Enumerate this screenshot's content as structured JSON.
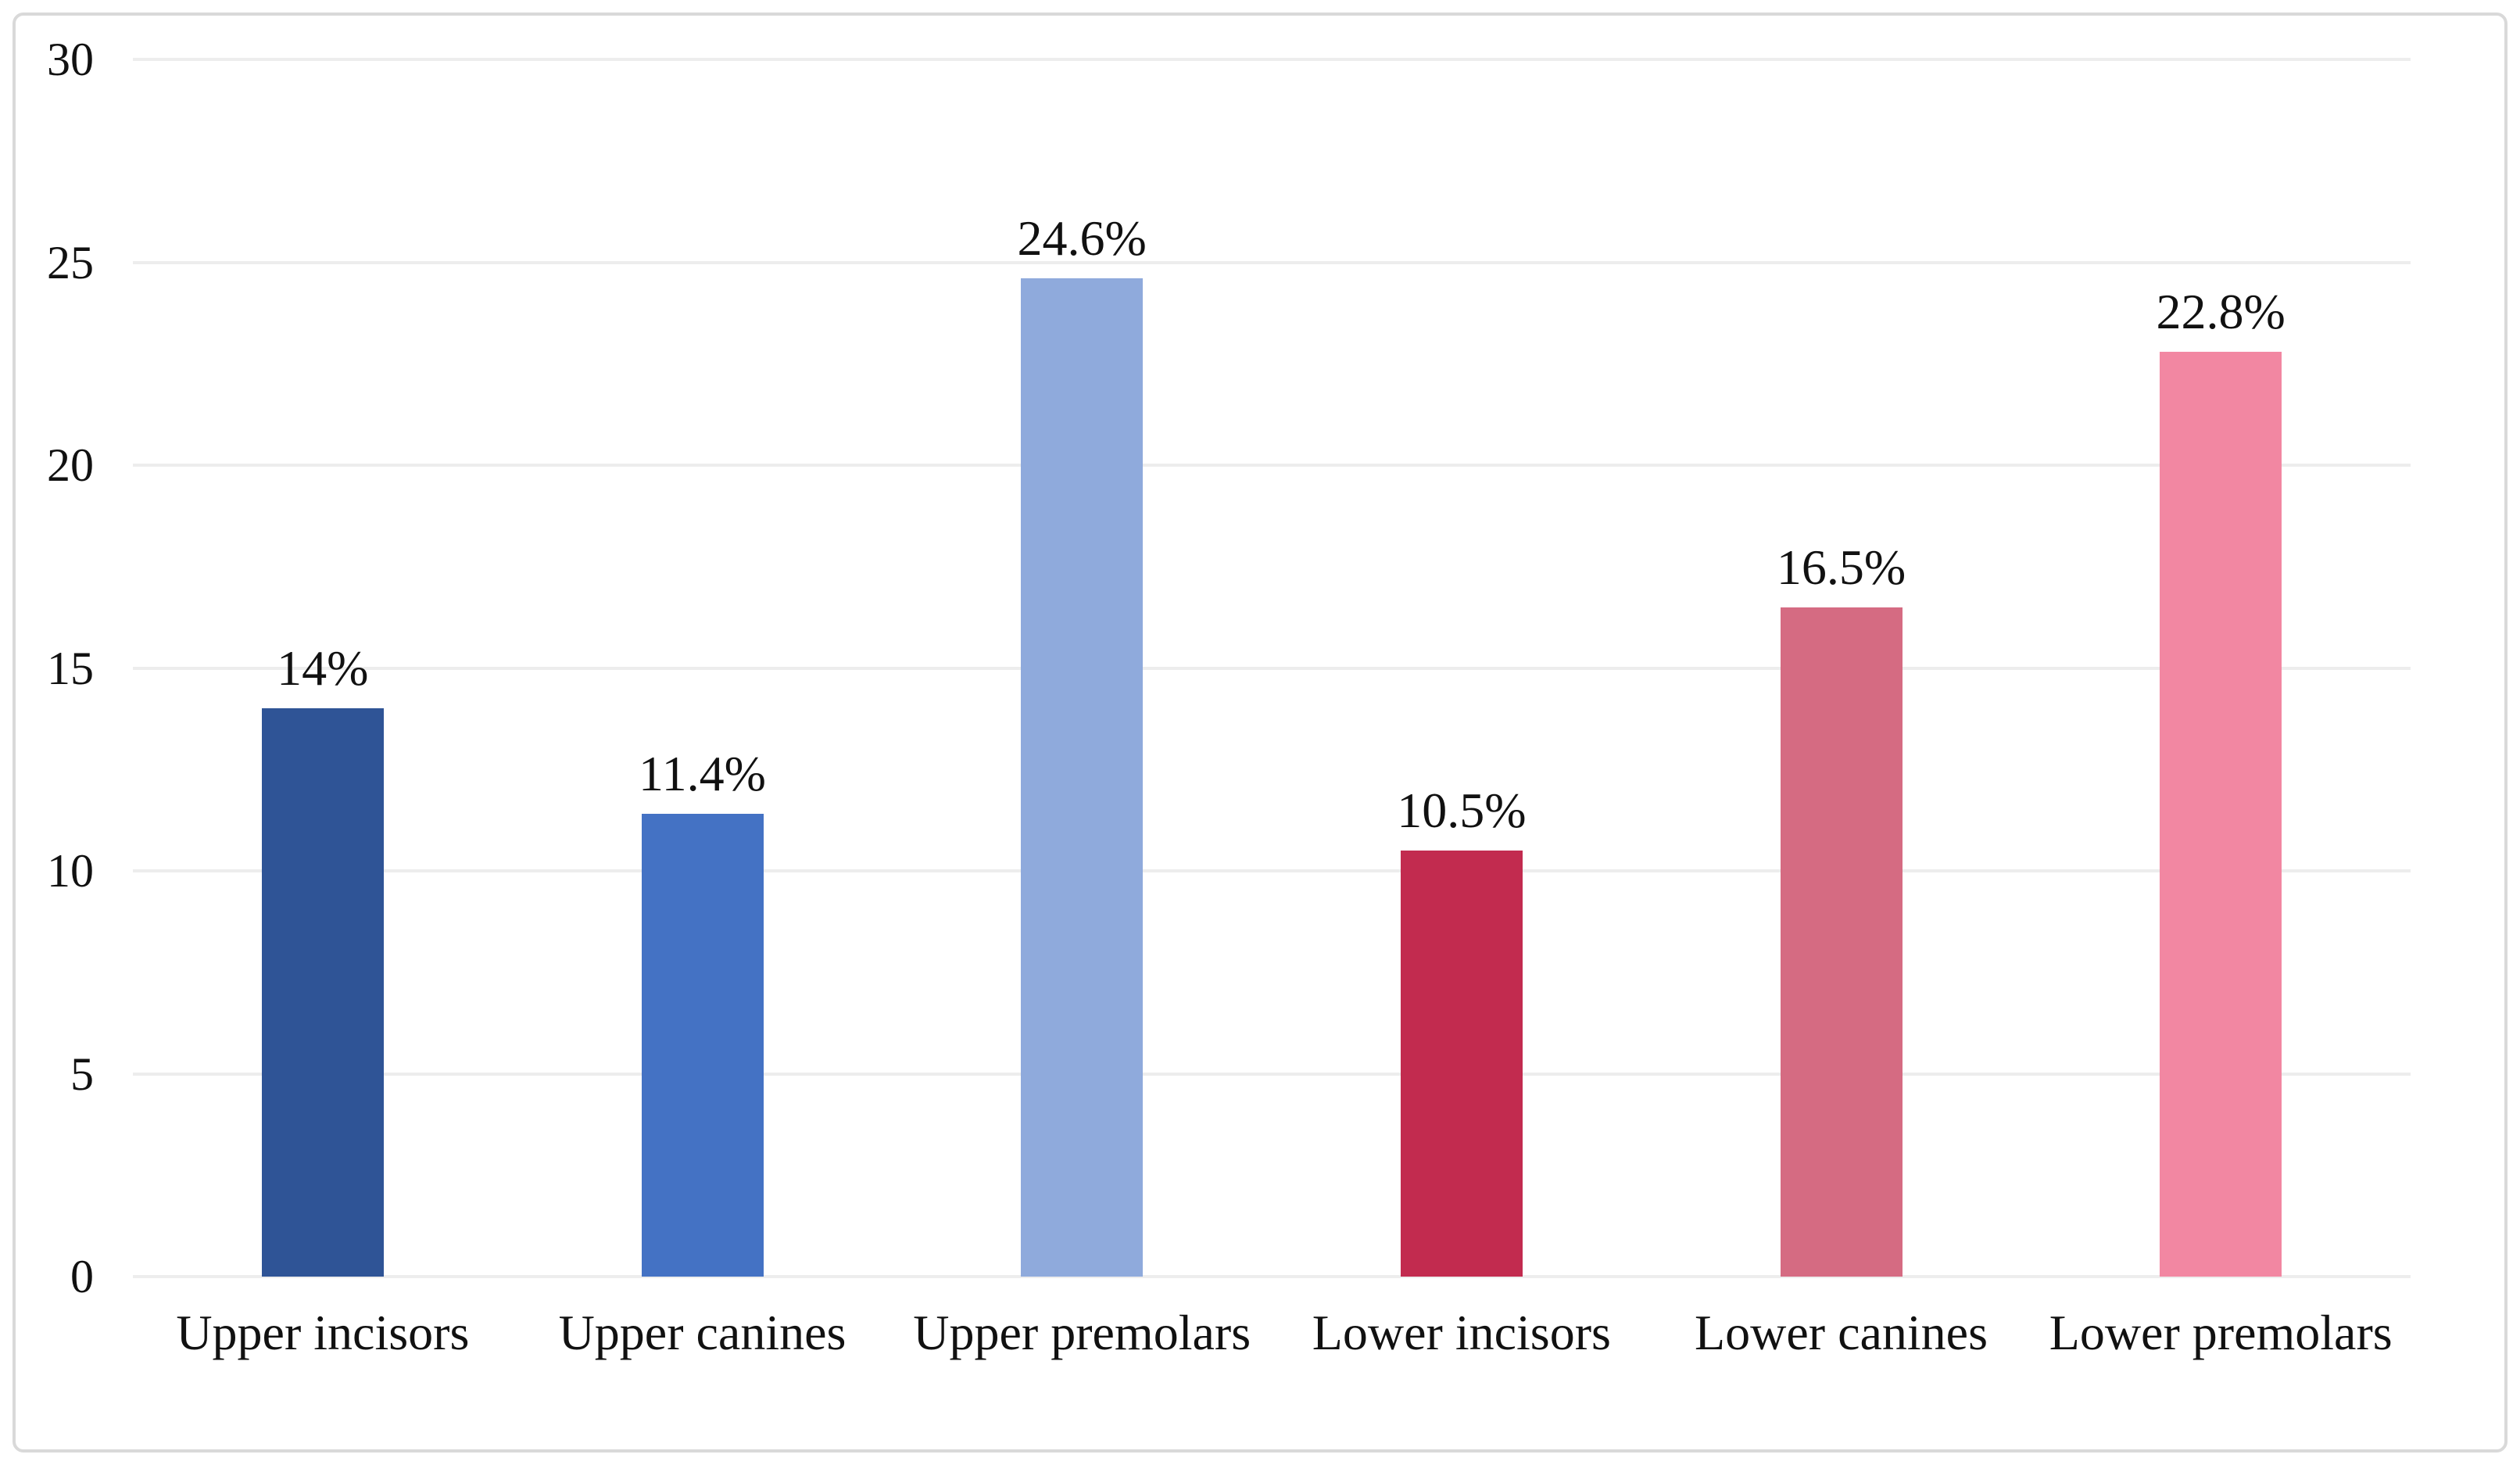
{
  "chart_data": {
    "type": "bar",
    "title": "",
    "xlabel": "",
    "ylabel": "",
    "categories": [
      "Upper incisors",
      "Upper canines",
      "Upper premolars",
      "Lower incisors",
      "Lower canines",
      "Lower premolars"
    ],
    "values": [
      14,
      11.4,
      24.6,
      10.5,
      16.5,
      22.8
    ],
    "labels": [
      "14%",
      "11.4%",
      "24.6%",
      "10.5%",
      "16.5%",
      "22.8%"
    ],
    "bar_colors": [
      "#2F5496",
      "#4472C4",
      "#8FAADC",
      "#C22B4F",
      "#D56B82",
      "#F287A2"
    ],
    "ylim": [
      0,
      30
    ],
    "yticks": [
      0,
      5,
      10,
      15,
      20,
      25,
      30
    ],
    "ytick_labels": [
      "0",
      "5",
      "10",
      "15",
      "20",
      "25",
      "30"
    ],
    "grid": "horizontal",
    "legend": "none"
  },
  "frame": {
    "background": "#FFFFFF",
    "border_color": "#D9D9D9",
    "gridline_color": "#EDEDED",
    "text_color": "#111111"
  }
}
